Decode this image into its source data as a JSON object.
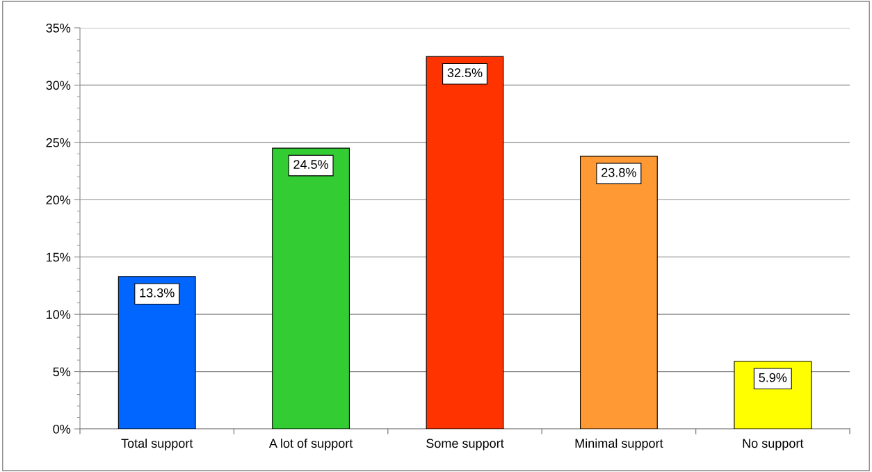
{
  "chart_data": {
    "type": "bar",
    "categories": [
      "Total support",
      "A lot of support",
      "Some support",
      "Minimal support",
      "No support"
    ],
    "values": [
      13.3,
      24.5,
      32.5,
      23.8,
      5.9
    ],
    "colors": [
      "#0066ff",
      "#33cc33",
      "#ff3300",
      "#ff9933",
      "#ffff00"
    ],
    "value_labels": [
      "13.3%",
      "24.5%",
      "32.5%",
      "23.8%",
      "5.9%"
    ],
    "ylim": [
      0,
      35
    ],
    "yticks": [
      {
        "value": 0,
        "label": "0%"
      },
      {
        "value": 5,
        "label": "5%"
      },
      {
        "value": 10,
        "label": "10%"
      },
      {
        "value": 15,
        "label": "15%"
      },
      {
        "value": 20,
        "label": "20%"
      },
      {
        "value": 25,
        "label": "25%"
      },
      {
        "value": 30,
        "label": "30%"
      },
      {
        "value": 35,
        "label": "35%"
      }
    ],
    "grid": "y",
    "legend": false
  }
}
